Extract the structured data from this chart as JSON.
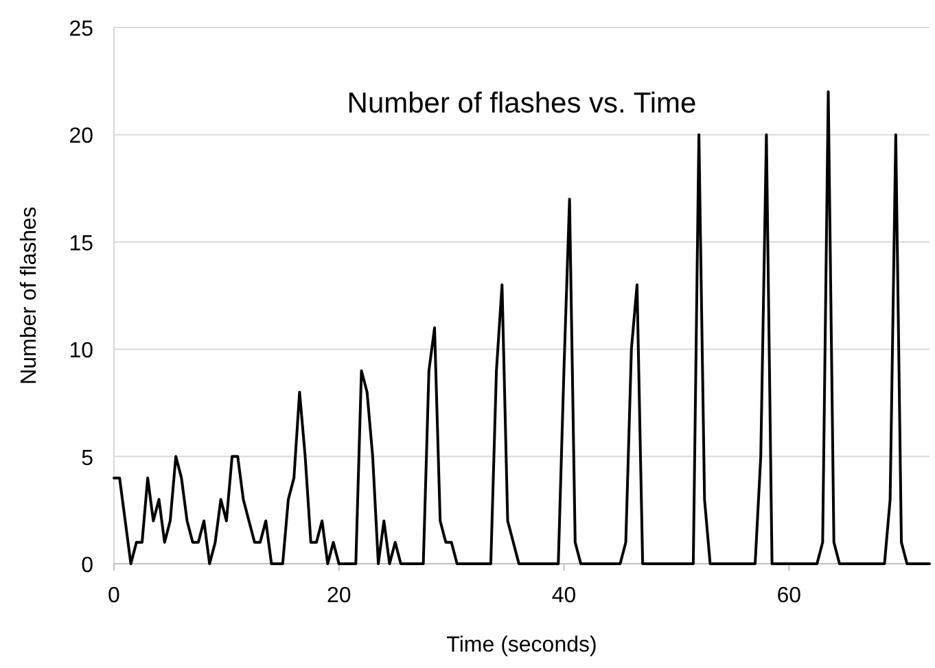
{
  "chart_data": {
    "type": "line",
    "title": "Number of flashes vs. Time",
    "xlabel": "Time (seconds)",
    "ylabel": "Number of flashes",
    "x": [
      0,
      0.5,
      1,
      1.5,
      2,
      2.5,
      3,
      3.5,
      4,
      4.5,
      5,
      5.5,
      6,
      6.5,
      7,
      7.5,
      8,
      8.5,
      9,
      9.5,
      10,
      10.5,
      11,
      11.5,
      12,
      12.5,
      13,
      13.5,
      14,
      14.5,
      15,
      15.5,
      16,
      16.5,
      17,
      17.5,
      18,
      18.5,
      19,
      19.5,
      20,
      20.5,
      21,
      21.5,
      22,
      22.5,
      23,
      23.5,
      24,
      24.5,
      25,
      25.5,
      26,
      26.5,
      27,
      27.5,
      28,
      28.5,
      29,
      29.5,
      30,
      30.5,
      31,
      31.5,
      32,
      32.5,
      33,
      33.5,
      34,
      34.5,
      35,
      35.5,
      36,
      36.5,
      37,
      37.5,
      38,
      38.5,
      39,
      39.5,
      40,
      40.5,
      41,
      41.5,
      42,
      42.5,
      43,
      43.5,
      44,
      44.5,
      45,
      45.5,
      46,
      46.5,
      47,
      47.5,
      48,
      48.5,
      49,
      49.5,
      50,
      50.5,
      51,
      51.5,
      52,
      52.5,
      53,
      53.5,
      54,
      54.5,
      55,
      55.5,
      56,
      56.5,
      57,
      57.5,
      58,
      58.5,
      59,
      59.5,
      60,
      60.5,
      61,
      61.5,
      62,
      62.5,
      63,
      63.5,
      64,
      64.5,
      65,
      65.5,
      66,
      66.5,
      67,
      67.5,
      68,
      68.5,
      69,
      69.5,
      70,
      70.5,
      71,
      71.5,
      72,
      72.5
    ],
    "series": [
      {
        "color": "#000000",
        "values": [
          4,
          4,
          2,
          0,
          1,
          1,
          4,
          2,
          3,
          1,
          2,
          5,
          4,
          2,
          1,
          1,
          2,
          0,
          1,
          3,
          2,
          5,
          5,
          3,
          2,
          1,
          1,
          2,
          0,
          0,
          0,
          3,
          4,
          8,
          5,
          1,
          1,
          2,
          0,
          1,
          0,
          0,
          0,
          0,
          9,
          8,
          5,
          0,
          2,
          0,
          1,
          0,
          0,
          0,
          0,
          0,
          9,
          11,
          2,
          1,
          1,
          0,
          0,
          0,
          0,
          0,
          0,
          0,
          9,
          13,
          2,
          1,
          0,
          0,
          0,
          0,
          0,
          0,
          0,
          0,
          9,
          17,
          1,
          0,
          0,
          0,
          0,
          0,
          0,
          0,
          0,
          1,
          10,
          13,
          0,
          0,
          0,
          0,
          0,
          0,
          0,
          0,
          0,
          0,
          20,
          3,
          0,
          0,
          0,
          0,
          0,
          0,
          0,
          0,
          0,
          5,
          20,
          0,
          0,
          0,
          0,
          0,
          0,
          0,
          0,
          0,
          1,
          22,
          1,
          0,
          0,
          0,
          0,
          0,
          0,
          0,
          0,
          0,
          3,
          20,
          1,
          0,
          0,
          0,
          0,
          0
        ]
      }
    ],
    "xlim": [
      0,
      72.5
    ],
    "xticks": [
      0,
      20,
      40,
      60
    ],
    "ylim": [
      0,
      25
    ],
    "yticks": [
      0,
      5,
      10,
      15,
      20,
      25
    ],
    "grid": "y",
    "marker": "none",
    "line_style": "solid"
  }
}
